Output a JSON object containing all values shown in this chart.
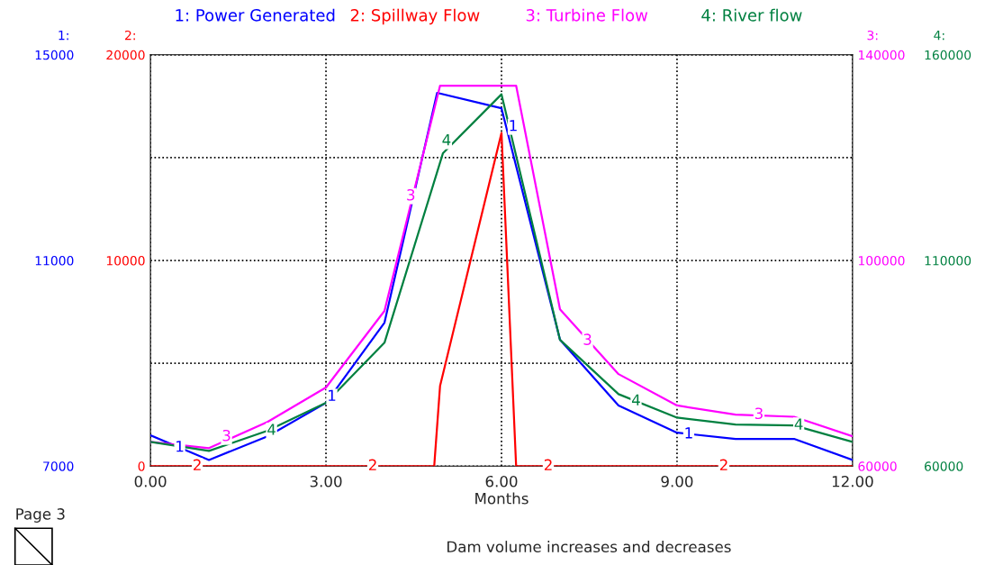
{
  "chart_data": [
    {
      "type": "line",
      "xlabel": "Months",
      "annotations": [
        "Dam volume increases and decreases",
        "Page 3",
        {
          "text": "1",
          "x": 0.5,
          "y": 7360
        },
        {
          "text": "1",
          "x": 3.1,
          "y": 8350
        },
        {
          "text": "1",
          "x": 6.2,
          "y": 13600
        },
        {
          "text": "1",
          "x": 9.2,
          "y": 7620
        }
      ],
      "xlim": [
        0,
        12
      ],
      "xticks": [
        {
          "value": 0,
          "label": "0.00"
        },
        {
          "value": 3,
          "label": "3.00"
        },
        {
          "value": 6,
          "label": "6.00"
        },
        {
          "value": 9,
          "label": "9.00"
        },
        {
          "value": 12,
          "label": "12.00"
        }
      ],
      "ylabel": "1:",
      "ylim": [
        7000,
        15000
      ],
      "yticks": [
        7000,
        {
          "value": 9000,
          "label": null
        },
        11000,
        {
          "value": 13000,
          "label": null
        },
        15000
      ],
      "grid": true,
      "legend": "top",
      "series": [
        {
          "name": "1: Power Generated",
          "color": "#0000ff",
          "x": [
            0,
            1,
            2,
            3,
            4,
            4.9,
            6,
            7,
            8,
            9,
            10,
            11,
            12
          ],
          "values": [
            7600,
            7120,
            7580,
            8230,
            9790,
            14260,
            13960,
            9460,
            8180,
            7650,
            7530,
            7530,
            7120
          ]
        }
      ]
    },
    {
      "type": "line",
      "tick_labels": "y",
      "legend": "top",
      "annotations": [
        {
          "text": "2",
          "x": 0.8,
          "y": 0
        },
        {
          "text": "2",
          "x": 3.8,
          "y": 0
        },
        {
          "text": "2",
          "x": 6.8,
          "y": 0
        },
        {
          "text": "2",
          "x": 9.8,
          "y": 0
        }
      ],
      "xlim": [
        0,
        12
      ],
      "ylabel": "2:",
      "ylim": [
        0,
        20000
      ],
      "yticks": [
        0,
        10000,
        20000
      ],
      "series": [
        {
          "name": "2: Spillway Flow",
          "color": "#ff0000",
          "x": [
            0,
            4.85,
            4.95,
            6,
            6.25,
            12
          ],
          "values": [
            0,
            0,
            3900,
            16200,
            0,
            0
          ]
        }
      ]
    },
    {
      "type": "line",
      "tick_labels": "y",
      "legend": "top",
      "annotations": [
        {
          "text": "3",
          "x": 1.3,
          "y": 65700
        },
        {
          "text": "3",
          "x": 4.45,
          "y": 112500
        },
        {
          "text": "3",
          "x": 7.47,
          "y": 84400
        },
        {
          "text": "3",
          "x": 10.4,
          "y": 70000
        }
      ],
      "xlim": [
        0,
        12
      ],
      "ylabel": "3:",
      "ylim": [
        60000,
        140000
      ],
      "yticks": [
        60000,
        100000,
        140000
      ],
      "series": [
        {
          "name": "3: Turbine Flow",
          "color": "#ff00ff",
          "x": [
            0,
            1,
            2,
            3,
            4,
            4.95,
            6.25,
            7,
            8,
            9,
            10,
            11,
            12
          ],
          "values": [
            64700,
            63500,
            68600,
            75300,
            90200,
            134000,
            134000,
            90500,
            77900,
            71800,
            70000,
            69600,
            65800
          ]
        }
      ]
    },
    {
      "type": "line",
      "tick_labels": "y",
      "legend": "top",
      "annotations": [
        {
          "text": "4",
          "x": 2.07,
          "y": 68600
        },
        {
          "text": "4",
          "x": 5.06,
          "y": 139000
        },
        {
          "text": "4",
          "x": 8.3,
          "y": 75790
        },
        {
          "text": "4",
          "x": 11.08,
          "y": 69900
        }
      ],
      "xlim": [
        0,
        12
      ],
      "ylabel": "4:",
      "ylim": [
        60000,
        160000
      ],
      "yticks": [
        60000,
        110000,
        160000
      ],
      "series": [
        {
          "name": "4: River flow",
          "color": "#008040",
          "x": [
            0,
            1,
            2,
            3,
            4,
            5,
            6,
            7,
            8,
            9,
            10,
            11,
            12
          ],
          "values": [
            65900,
            63700,
            68600,
            75400,
            90000,
            136100,
            150400,
            90700,
            77500,
            71800,
            70100,
            69900,
            65900
          ]
        }
      ]
    }
  ]
}
